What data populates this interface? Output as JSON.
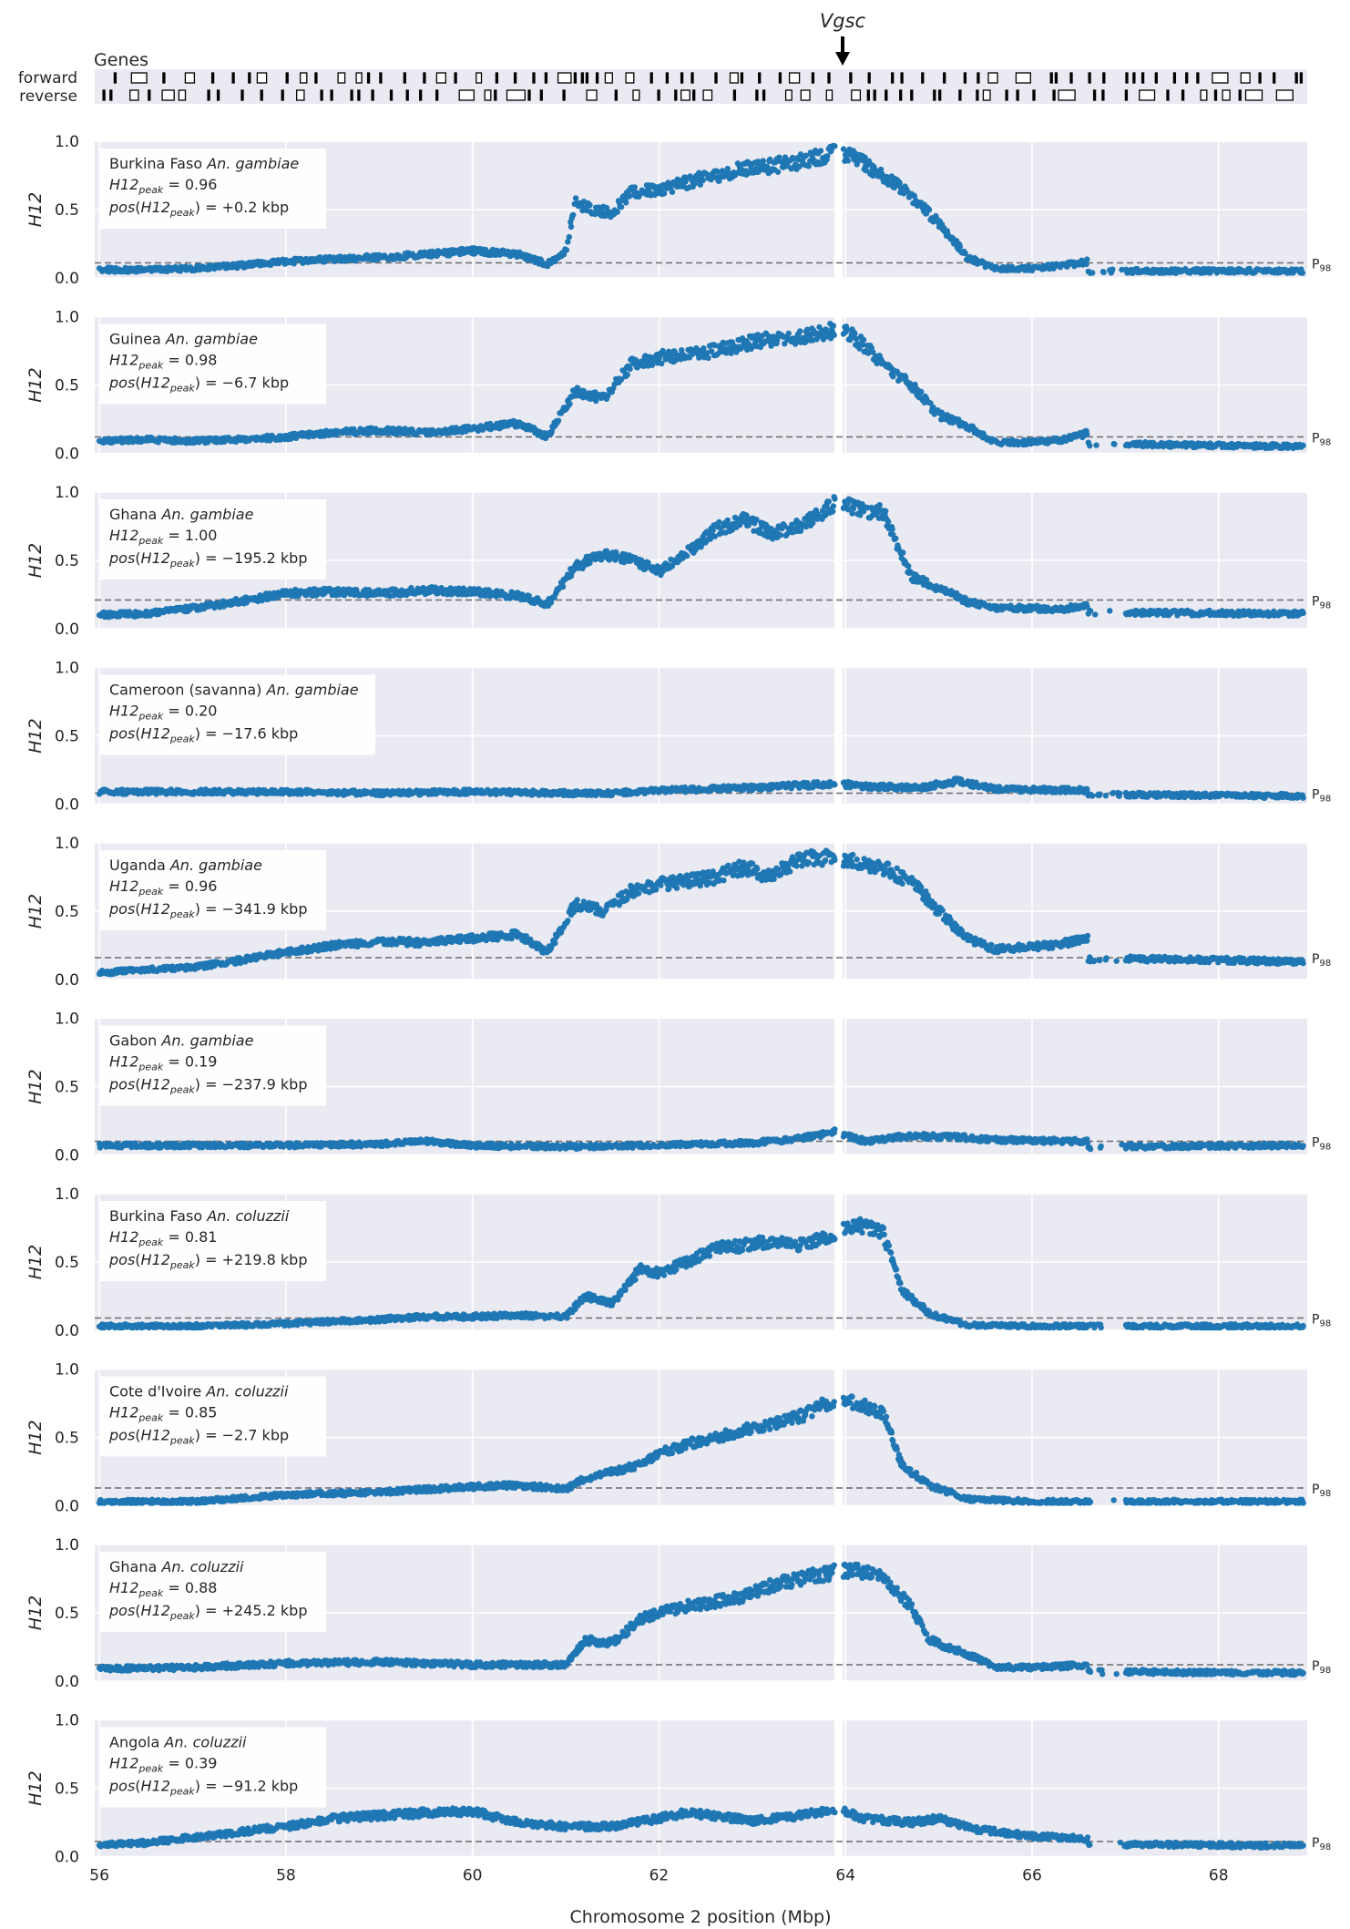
{
  "genes_track": {
    "title": "Genes",
    "strand_labels": [
      "forward",
      "reverse"
    ],
    "marker_label": "Vgsc",
    "marker_position_mbp": 63.93
  },
  "chart_data": {
    "type": "scatter",
    "xlabel": "Chromosome 2 position (Mbp)",
    "ylabel": "H12",
    "xlim": [
      55.95,
      68.95
    ],
    "ylim": [
      0,
      1.0
    ],
    "xticks": [
      56,
      58,
      60,
      62,
      64,
      66,
      68
    ],
    "yticks": [
      0.0,
      0.5,
      1.0
    ],
    "threshold_label": "P98",
    "gaps_mbp": [
      [
        63.88,
        63.97
      ]
    ],
    "point_color": "#1f77b4",
    "panels": [
      {
        "population": "Burkina Faso",
        "species": "An. gambiae",
        "h12_peak": "0.96",
        "pos_peak": "+0.2 kbp",
        "p98": 0.11,
        "profile": [
          [
            55.95,
            0.06
          ],
          [
            56.5,
            0.06
          ],
          [
            57.0,
            0.07
          ],
          [
            57.5,
            0.09
          ],
          [
            58.0,
            0.12
          ],
          [
            58.5,
            0.14
          ],
          [
            59.0,
            0.15
          ],
          [
            59.5,
            0.17
          ],
          [
            60.0,
            0.2
          ],
          [
            60.5,
            0.17
          ],
          [
            60.8,
            0.1
          ],
          [
            61.0,
            0.2
          ],
          [
            61.1,
            0.55
          ],
          [
            61.3,
            0.5
          ],
          [
            61.5,
            0.48
          ],
          [
            61.7,
            0.62
          ],
          [
            62.0,
            0.65
          ],
          [
            62.3,
            0.7
          ],
          [
            62.6,
            0.75
          ],
          [
            62.9,
            0.8
          ],
          [
            63.2,
            0.82
          ],
          [
            63.5,
            0.85
          ],
          [
            63.9,
            0.92
          ],
          [
            64.1,
            0.88
          ],
          [
            64.4,
            0.75
          ],
          [
            64.7,
            0.6
          ],
          [
            65.0,
            0.4
          ],
          [
            65.3,
            0.15
          ],
          [
            65.6,
            0.07
          ],
          [
            66.0,
            0.07
          ],
          [
            66.3,
            0.09
          ],
          [
            66.6,
            0.12
          ],
          [
            66.6,
            0.05
          ],
          [
            68.95,
            0.05
          ]
        ]
      },
      {
        "population": "Guinea",
        "species": "An. gambiae",
        "h12_peak": "0.98",
        "pos_peak": "−6.7 kbp",
        "p98": 0.12,
        "profile": [
          [
            55.95,
            0.09
          ],
          [
            56.5,
            0.1
          ],
          [
            57.0,
            0.09
          ],
          [
            57.5,
            0.1
          ],
          [
            58.0,
            0.12
          ],
          [
            58.5,
            0.15
          ],
          [
            59.0,
            0.17
          ],
          [
            59.5,
            0.15
          ],
          [
            60.0,
            0.18
          ],
          [
            60.5,
            0.22
          ],
          [
            60.8,
            0.12
          ],
          [
            61.1,
            0.45
          ],
          [
            61.4,
            0.4
          ],
          [
            61.7,
            0.65
          ],
          [
            62.0,
            0.7
          ],
          [
            62.3,
            0.72
          ],
          [
            62.6,
            0.75
          ],
          [
            62.9,
            0.8
          ],
          [
            63.2,
            0.84
          ],
          [
            63.5,
            0.85
          ],
          [
            63.9,
            0.9
          ],
          [
            64.1,
            0.85
          ],
          [
            64.4,
            0.65
          ],
          [
            64.7,
            0.5
          ],
          [
            65.0,
            0.28
          ],
          [
            65.3,
            0.2
          ],
          [
            65.6,
            0.08
          ],
          [
            66.0,
            0.08
          ],
          [
            66.3,
            0.1
          ],
          [
            66.6,
            0.15
          ],
          [
            66.6,
            0.07
          ],
          [
            68.95,
            0.05
          ]
        ]
      },
      {
        "population": "Ghana",
        "species": "An. gambiae",
        "h12_peak": "1.00",
        "pos_peak": "−195.2 kbp",
        "p98": 0.21,
        "profile": [
          [
            55.95,
            0.1
          ],
          [
            56.5,
            0.11
          ],
          [
            57.0,
            0.15
          ],
          [
            57.5,
            0.2
          ],
          [
            58.0,
            0.26
          ],
          [
            58.5,
            0.27
          ],
          [
            59.0,
            0.26
          ],
          [
            59.5,
            0.28
          ],
          [
            60.0,
            0.27
          ],
          [
            60.5,
            0.24
          ],
          [
            60.8,
            0.18
          ],
          [
            61.1,
            0.45
          ],
          [
            61.4,
            0.55
          ],
          [
            61.7,
            0.5
          ],
          [
            62.0,
            0.42
          ],
          [
            62.3,
            0.55
          ],
          [
            62.6,
            0.72
          ],
          [
            62.9,
            0.8
          ],
          [
            63.2,
            0.7
          ],
          [
            63.5,
            0.75
          ],
          [
            63.9,
            0.92
          ],
          [
            64.1,
            0.88
          ],
          [
            64.4,
            0.85
          ],
          [
            64.7,
            0.38
          ],
          [
            65.0,
            0.3
          ],
          [
            65.3,
            0.2
          ],
          [
            65.6,
            0.15
          ],
          [
            66.0,
            0.15
          ],
          [
            66.3,
            0.14
          ],
          [
            66.6,
            0.18
          ],
          [
            66.6,
            0.12
          ],
          [
            68.95,
            0.11
          ]
        ]
      },
      {
        "population": "Cameroon (savanna)",
        "species": "An. gambiae",
        "h12_peak": "0.20",
        "pos_peak": "−17.6 kbp",
        "p98": 0.08,
        "profile": [
          [
            55.95,
            0.09
          ],
          [
            57.0,
            0.09
          ],
          [
            58.0,
            0.09
          ],
          [
            59.0,
            0.08
          ],
          [
            60.0,
            0.09
          ],
          [
            61.0,
            0.08
          ],
          [
            61.5,
            0.08
          ],
          [
            62.0,
            0.1
          ],
          [
            63.0,
            0.12
          ],
          [
            63.9,
            0.15
          ],
          [
            64.2,
            0.13
          ],
          [
            64.8,
            0.12
          ],
          [
            65.2,
            0.17
          ],
          [
            65.6,
            0.11
          ],
          [
            66.6,
            0.1
          ],
          [
            66.6,
            0.07
          ],
          [
            68.95,
            0.06
          ]
        ]
      },
      {
        "population": "Uganda",
        "species": "An. gambiae",
        "h12_peak": "0.96",
        "pos_peak": "−341.9 kbp",
        "p98": 0.16,
        "profile": [
          [
            55.95,
            0.05
          ],
          [
            56.5,
            0.07
          ],
          [
            57.0,
            0.09
          ],
          [
            57.5,
            0.14
          ],
          [
            58.0,
            0.2
          ],
          [
            58.5,
            0.25
          ],
          [
            59.0,
            0.28
          ],
          [
            59.5,
            0.27
          ],
          [
            60.0,
            0.3
          ],
          [
            60.5,
            0.33
          ],
          [
            60.8,
            0.2
          ],
          [
            61.1,
            0.55
          ],
          [
            61.4,
            0.5
          ],
          [
            61.7,
            0.65
          ],
          [
            62.0,
            0.7
          ],
          [
            62.3,
            0.72
          ],
          [
            62.6,
            0.75
          ],
          [
            62.9,
            0.82
          ],
          [
            63.2,
            0.75
          ],
          [
            63.5,
            0.88
          ],
          [
            63.9,
            0.9
          ],
          [
            64.1,
            0.86
          ],
          [
            64.4,
            0.82
          ],
          [
            64.7,
            0.72
          ],
          [
            65.0,
            0.5
          ],
          [
            65.3,
            0.3
          ],
          [
            65.6,
            0.22
          ],
          [
            66.0,
            0.24
          ],
          [
            66.3,
            0.26
          ],
          [
            66.6,
            0.3
          ],
          [
            66.6,
            0.15
          ],
          [
            67.5,
            0.15
          ],
          [
            68.95,
            0.13
          ]
        ]
      },
      {
        "population": "Gabon",
        "species": "An. gambiae",
        "h12_peak": "0.19",
        "pos_peak": "−237.9 kbp",
        "p98": 0.1,
        "profile": [
          [
            55.95,
            0.07
          ],
          [
            57.0,
            0.07
          ],
          [
            58.0,
            0.07
          ],
          [
            59.0,
            0.08
          ],
          [
            59.5,
            0.1
          ],
          [
            60.0,
            0.07
          ],
          [
            61.0,
            0.06
          ],
          [
            62.0,
            0.07
          ],
          [
            63.0,
            0.09
          ],
          [
            63.5,
            0.12
          ],
          [
            63.9,
            0.17
          ],
          [
            64.2,
            0.1
          ],
          [
            64.7,
            0.14
          ],
          [
            65.2,
            0.13
          ],
          [
            65.6,
            0.11
          ],
          [
            66.6,
            0.1
          ],
          [
            66.6,
            0.06
          ],
          [
            68.95,
            0.07
          ]
        ]
      },
      {
        "population": "Burkina Faso",
        "species": "An. coluzzii",
        "h12_peak": "0.81",
        "pos_peak": "+219.8 kbp",
        "p98": 0.09,
        "profile": [
          [
            55.95,
            0.03
          ],
          [
            57.0,
            0.03
          ],
          [
            58.0,
            0.05
          ],
          [
            59.0,
            0.08
          ],
          [
            59.5,
            0.1
          ],
          [
            60.0,
            0.1
          ],
          [
            60.5,
            0.11
          ],
          [
            61.0,
            0.1
          ],
          [
            61.2,
            0.25
          ],
          [
            61.5,
            0.2
          ],
          [
            61.8,
            0.45
          ],
          [
            62.0,
            0.42
          ],
          [
            62.3,
            0.5
          ],
          [
            62.6,
            0.6
          ],
          [
            62.9,
            0.62
          ],
          [
            63.2,
            0.65
          ],
          [
            63.5,
            0.62
          ],
          [
            63.9,
            0.7
          ],
          [
            64.1,
            0.78
          ],
          [
            64.4,
            0.72
          ],
          [
            64.6,
            0.3
          ],
          [
            64.9,
            0.12
          ],
          [
            65.3,
            0.04
          ],
          [
            66.0,
            0.03
          ],
          [
            66.6,
            0.03
          ],
          [
            68.95,
            0.03
          ]
        ]
      },
      {
        "population": "Cote d'Ivoire",
        "species": "An. coluzzii",
        "h12_peak": "0.85",
        "pos_peak": "−2.7 kbp",
        "p98": 0.13,
        "profile": [
          [
            55.95,
            0.03
          ],
          [
            57.0,
            0.03
          ],
          [
            58.0,
            0.08
          ],
          [
            59.0,
            0.1
          ],
          [
            59.5,
            0.12
          ],
          [
            60.0,
            0.14
          ],
          [
            60.5,
            0.15
          ],
          [
            61.0,
            0.12
          ],
          [
            61.2,
            0.2
          ],
          [
            61.5,
            0.25
          ],
          [
            61.8,
            0.3
          ],
          [
            62.0,
            0.38
          ],
          [
            62.3,
            0.45
          ],
          [
            62.6,
            0.5
          ],
          [
            62.9,
            0.55
          ],
          [
            63.2,
            0.6
          ],
          [
            63.5,
            0.65
          ],
          [
            63.9,
            0.78
          ],
          [
            64.1,
            0.75
          ],
          [
            64.4,
            0.68
          ],
          [
            64.6,
            0.3
          ],
          [
            64.9,
            0.15
          ],
          [
            65.3,
            0.05
          ],
          [
            66.0,
            0.03
          ],
          [
            66.6,
            0.03
          ],
          [
            68.95,
            0.03
          ]
        ]
      },
      {
        "population": "Ghana",
        "species": "An. coluzzii",
        "h12_peak": "0.88",
        "pos_peak": "+245.2 kbp",
        "p98": 0.12,
        "profile": [
          [
            55.95,
            0.09
          ],
          [
            57.0,
            0.1
          ],
          [
            58.0,
            0.13
          ],
          [
            59.0,
            0.14
          ],
          [
            60.0,
            0.12
          ],
          [
            61.0,
            0.12
          ],
          [
            61.2,
            0.3
          ],
          [
            61.5,
            0.28
          ],
          [
            61.8,
            0.45
          ],
          [
            62.0,
            0.5
          ],
          [
            62.3,
            0.55
          ],
          [
            62.6,
            0.58
          ],
          [
            62.9,
            0.62
          ],
          [
            63.2,
            0.7
          ],
          [
            63.5,
            0.75
          ],
          [
            63.9,
            0.8
          ],
          [
            64.1,
            0.82
          ],
          [
            64.4,
            0.75
          ],
          [
            64.7,
            0.55
          ],
          [
            64.9,
            0.3
          ],
          [
            65.3,
            0.2
          ],
          [
            65.6,
            0.1
          ],
          [
            66.0,
            0.1
          ],
          [
            66.6,
            0.12
          ],
          [
            66.6,
            0.07
          ],
          [
            68.95,
            0.06
          ]
        ]
      },
      {
        "population": "Angola",
        "species": "An. coluzzii",
        "h12_peak": "0.39",
        "pos_peak": "−91.2 kbp",
        "p98": 0.11,
        "profile": [
          [
            55.95,
            0.08
          ],
          [
            56.5,
            0.1
          ],
          [
            57.0,
            0.14
          ],
          [
            57.5,
            0.18
          ],
          [
            58.0,
            0.22
          ],
          [
            58.5,
            0.28
          ],
          [
            59.0,
            0.3
          ],
          [
            59.5,
            0.32
          ],
          [
            60.0,
            0.33
          ],
          [
            60.5,
            0.25
          ],
          [
            61.0,
            0.22
          ],
          [
            61.5,
            0.22
          ],
          [
            62.0,
            0.28
          ],
          [
            62.3,
            0.32
          ],
          [
            62.6,
            0.3
          ],
          [
            63.0,
            0.26
          ],
          [
            63.5,
            0.3
          ],
          [
            63.9,
            0.35
          ],
          [
            64.2,
            0.28
          ],
          [
            64.7,
            0.25
          ],
          [
            65.0,
            0.28
          ],
          [
            65.4,
            0.2
          ],
          [
            66.0,
            0.15
          ],
          [
            66.6,
            0.13
          ],
          [
            66.6,
            0.09
          ],
          [
            68.95,
            0.08
          ]
        ]
      }
    ]
  }
}
